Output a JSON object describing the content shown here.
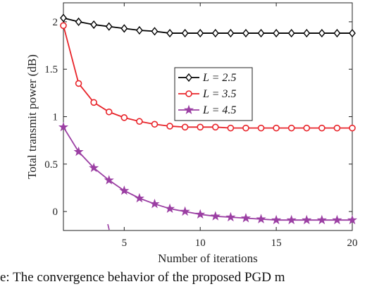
{
  "chart_data": {
    "type": "line",
    "xlabel": "Number of iterations",
    "ylabel": "Total transmit power (dB)",
    "xlim": [
      1,
      20
    ],
    "ylim": [
      -0.2,
      2.2
    ],
    "xticks": [
      5,
      10,
      15,
      20
    ],
    "yticks": [
      0,
      0.5,
      1,
      1.5,
      2
    ],
    "xtick_labels": [
      "5",
      "10",
      "15",
      "20"
    ],
    "ytick_labels": [
      "0",
      "0.5",
      "1",
      "1.5",
      "2"
    ],
    "grid": false,
    "legend_position": "center-right",
    "x": [
      1,
      2,
      3,
      4,
      5,
      6,
      7,
      8,
      9,
      10,
      11,
      12,
      13,
      14,
      15,
      16,
      17,
      18,
      19,
      20
    ],
    "series": [
      {
        "name": "L = 2.5",
        "color": "#000000",
        "marker": "diamond",
        "values": [
          2.04,
          2.0,
          1.97,
          1.95,
          1.93,
          1.91,
          1.9,
          1.88,
          1.88,
          1.88,
          1.88,
          1.88,
          1.88,
          1.88,
          1.88,
          1.88,
          1.88,
          1.88,
          1.88,
          1.88
        ]
      },
      {
        "name": "L = 3.5",
        "color": "#e8242a",
        "marker": "circle",
        "values": [
          1.96,
          1.35,
          1.15,
          1.05,
          0.99,
          0.95,
          0.92,
          0.9,
          0.89,
          0.89,
          0.89,
          0.88,
          0.88,
          0.88,
          0.88,
          0.88,
          0.88,
          0.88,
          0.88,
          0.88
        ]
      },
      {
        "name": "L = 4.5",
        "color": "#9b3fa3",
        "marker": "star",
        "values": [
          0.89,
          0.63,
          0.46,
          0.33,
          0.22,
          0.14,
          0.08,
          0.03,
          0.0,
          -0.03,
          -0.05,
          -0.06,
          -0.07,
          -0.08,
          -0.09,
          -0.09,
          -0.09,
          -0.09,
          -0.09,
          -0.09
        ]
      }
    ]
  },
  "caption": "e: The convergence behavior of the proposed PGD m"
}
